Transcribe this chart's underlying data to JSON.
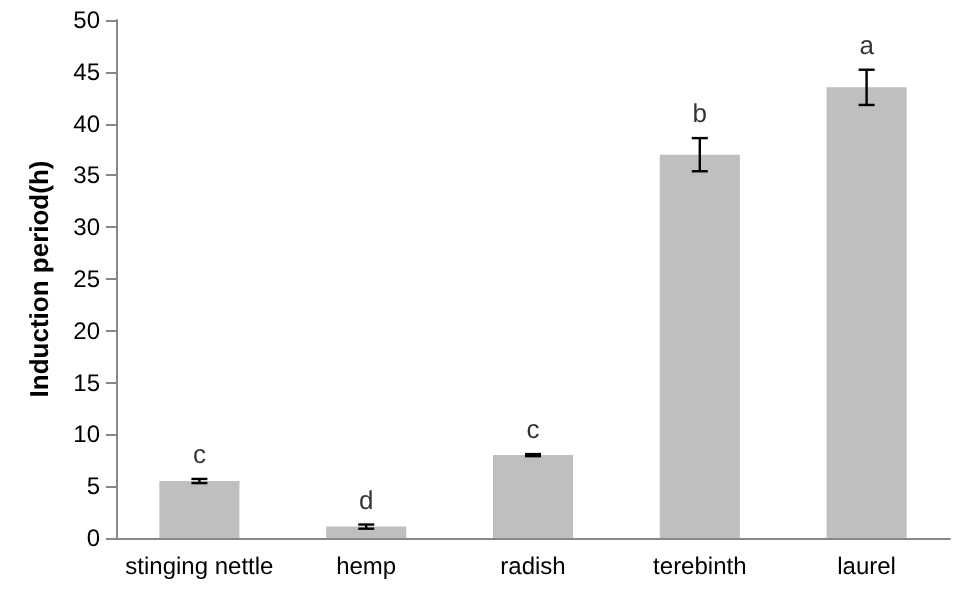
{
  "chart_data": {
    "type": "bar",
    "ylabel": "Induction period(h)",
    "categories": [
      "stinging nettle",
      "hemp",
      "radish",
      "terebinth",
      "laurel"
    ],
    "values": [
      5.5,
      1.1,
      8.0,
      37.0,
      43.5
    ],
    "errors": [
      0.2,
      0.2,
      0.1,
      1.6,
      1.7
    ],
    "color": "#bfbfbf",
    "ylim": [
      0,
      50
    ],
    "yticks": [
      0,
      5,
      10,
      15,
      20,
      25,
      30,
      35,
      40,
      45,
      50
    ],
    "annotations": [
      {
        "text": "c",
        "x": "stinging nettle",
        "y": 5.7
      },
      {
        "text": "d",
        "x": "hemp",
        "y": 1.3
      },
      {
        "text": "c",
        "x": "radish",
        "y": 8.1
      },
      {
        "text": "b",
        "x": "terebinth",
        "y": 38.6
      },
      {
        "text": "a",
        "x": "laurel",
        "y": 45.2
      }
    ]
  }
}
